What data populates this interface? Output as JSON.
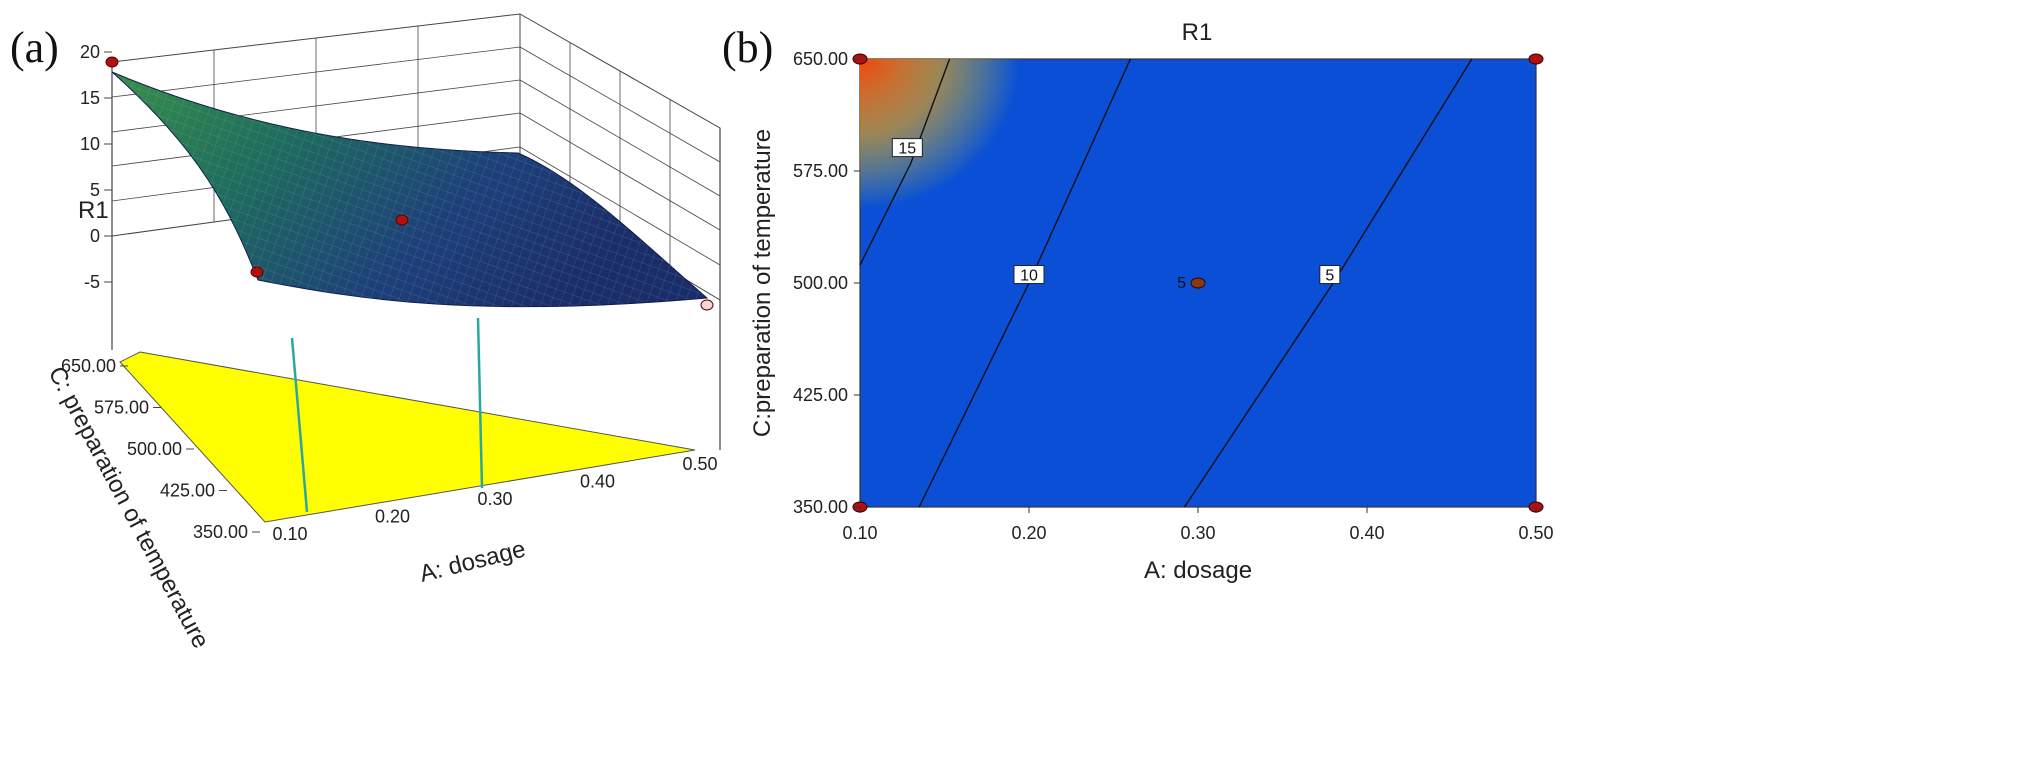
{
  "panel_labels": {
    "a": "(a)",
    "b": "(b)"
  },
  "colors": {
    "surface_low": "#1c2a6e",
    "surface_high": "#2e8a4a",
    "floor": "#ffff00",
    "design_point": "#b01010",
    "contour_line": "#111111"
  },
  "chart_data": [
    {
      "type": "surface3d",
      "title": "",
      "zlabel": "R1",
      "xlabel": "A: dosage",
      "ylabel": "C: preparation of temperature",
      "z_ticks": [
        "20",
        "15",
        "10",
        "5",
        "0",
        "-5"
      ],
      "x_ticks": [
        "0.10",
        "0.20",
        "0.30",
        "0.40",
        "0.50"
      ],
      "y_ticks": [
        "650.00",
        "575.00",
        "500.00",
        "425.00",
        "350.00"
      ],
      "xlim": [
        0.1,
        0.5
      ],
      "ylim": [
        350,
        650
      ],
      "zlim": [
        -5,
        20
      ],
      "design_points": [
        {
          "x": 0.1,
          "y": 650,
          "z": 17.5
        },
        {
          "x": 0.1,
          "y": 350,
          "z": -4.0
        },
        {
          "x": 0.3,
          "y": 500,
          "z": 5.0
        },
        {
          "x": 0.5,
          "y": 350,
          "z": -5.5
        }
      ]
    },
    {
      "type": "contour",
      "title": "R1",
      "xlabel": "A: dosage",
      "ylabel": "C:preparation of temperature",
      "x_ticks": [
        "0.10",
        "0.20",
        "0.30",
        "0.40",
        "0.50"
      ],
      "y_ticks": [
        "650.00",
        "575.00",
        "500.00",
        "425.00",
        "350.00"
      ],
      "xlim": [
        0.1,
        0.5
      ],
      "ylim": [
        350,
        650
      ],
      "contours": [
        {
          "label": "15",
          "points": [
            [
              0.1,
              512
            ],
            [
              0.13,
              580
            ],
            [
              0.153,
              650
            ]
          ]
        },
        {
          "label": "10",
          "points": [
            [
              0.135,
              350
            ],
            [
              0.2,
              500
            ],
            [
              0.26,
              650
            ]
          ]
        },
        {
          "label": "5",
          "points": [
            [
              0.292,
              350
            ],
            [
              0.38,
              500
            ],
            [
              0.462,
              650
            ]
          ]
        }
      ],
      "design_points": [
        {
          "x": 0.1,
          "y": 650
        },
        {
          "x": 0.5,
          "y": 650
        },
        {
          "x": 0.1,
          "y": 350
        },
        {
          "x": 0.5,
          "y": 350
        },
        {
          "x": 0.3,
          "y": 500,
          "label": "5"
        }
      ]
    }
  ]
}
